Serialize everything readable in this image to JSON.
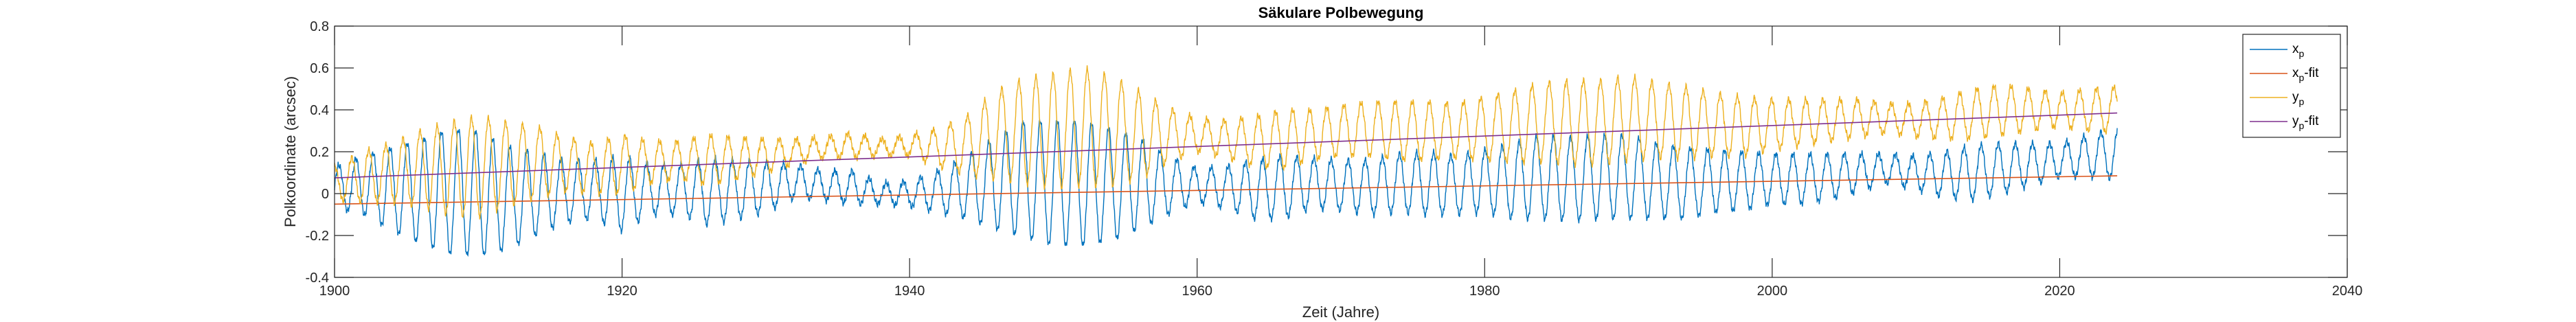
{
  "chart_data": {
    "type": "line",
    "title": "Säkulare Polbewegung",
    "xlabel": "Zeit (Jahre)",
    "ylabel": "Polkoordinate (arcsec)",
    "xlim": [
      1900,
      2040
    ],
    "ylim": [
      -0.4,
      0.8
    ],
    "xticks": [
      "1900",
      "1920",
      "1940",
      "1960",
      "1980",
      "2000",
      "2020",
      "2040"
    ],
    "yticks": [
      "-0.4",
      "-0.2",
      "0",
      "0.2",
      "0.4",
      "0.6",
      "0.8"
    ],
    "grid": false,
    "legend_position": "top-right",
    "series": [
      {
        "name": "x_p",
        "label_main": "x",
        "label_sub": "p",
        "label_suffix": "",
        "color": "#0072BD",
        "x": [
          1900,
          1902,
          1904,
          1906,
          1908,
          1910,
          1912,
          1914,
          1916,
          1918,
          1920,
          1922,
          1924,
          1926,
          1928,
          1930,
          1932,
          1934,
          1936,
          1938,
          1940,
          1942,
          1944,
          1946,
          1948,
          1950,
          1952,
          1954,
          1956,
          1958,
          1960,
          1962,
          1964,
          1966,
          1968,
          1970,
          1972,
          1974,
          1976,
          1978,
          1980,
          1982,
          1984,
          1986,
          1988,
          1990,
          1992,
          1994,
          1996,
          1998,
          2000,
          2002,
          2004,
          2006,
          2008,
          2010,
          2012,
          2014,
          2016,
          2018,
          2020,
          2022,
          2024
        ],
        "center": [
          0.03,
          0.04,
          0.02,
          0.01,
          0.01,
          0.0,
          -0.02,
          0.0,
          0.01,
          0.02,
          0.0,
          0.02,
          0.02,
          0.01,
          0.02,
          0.03,
          0.06,
          0.04,
          0.03,
          0.0,
          0.0,
          0.01,
          0.03,
          0.05,
          0.07,
          0.05,
          0.05,
          0.04,
          0.05,
          0.04,
          0.04,
          0.03,
          0.02,
          0.03,
          0.05,
          0.04,
          0.03,
          0.05,
          0.05,
          0.04,
          0.06,
          0.06,
          0.08,
          0.07,
          0.08,
          0.08,
          0.06,
          0.05,
          0.06,
          0.06,
          0.07,
          0.07,
          0.08,
          0.1,
          0.12,
          0.1,
          0.09,
          0.1,
          0.12,
          0.14,
          0.16,
          0.18,
          0.19
        ],
        "amplitude": [
          0.1,
          0.14,
          0.2,
          0.25,
          0.3,
          0.3,
          0.25,
          0.2,
          0.15,
          0.14,
          0.18,
          0.12,
          0.12,
          0.16,
          0.14,
          0.12,
          0.08,
          0.07,
          0.08,
          0.05,
          0.06,
          0.1,
          0.15,
          0.22,
          0.28,
          0.3,
          0.3,
          0.27,
          0.22,
          0.14,
          0.08,
          0.1,
          0.14,
          0.15,
          0.12,
          0.12,
          0.13,
          0.14,
          0.15,
          0.14,
          0.15,
          0.18,
          0.2,
          0.2,
          0.2,
          0.2,
          0.18,
          0.17,
          0.15,
          0.14,
          0.12,
          0.12,
          0.11,
          0.09,
          0.07,
          0.08,
          0.11,
          0.13,
          0.12,
          0.1,
          0.08,
          0.1,
          0.12
        ],
        "period": 1.19
      },
      {
        "name": "x_p-fit",
        "label_main": "x",
        "label_sub": "p",
        "label_suffix": "-fit",
        "color": "#D95319",
        "x": [
          1900,
          2024
        ],
        "y": [
          -0.05,
          0.085
        ]
      },
      {
        "name": "y_p",
        "label_main": "y",
        "label_sub": "p",
        "label_suffix": "",
        "color": "#EDB120",
        "x": [
          1900,
          1902,
          1904,
          1906,
          1908,
          1910,
          1912,
          1914,
          1916,
          1918,
          1920,
          1922,
          1924,
          1926,
          1928,
          1930,
          1932,
          1934,
          1936,
          1938,
          1940,
          1942,
          1944,
          1946,
          1948,
          1950,
          1952,
          1954,
          1956,
          1958,
          1960,
          1962,
          1964,
          1966,
          1968,
          1970,
          1972,
          1974,
          1976,
          1978,
          1980,
          1982,
          1984,
          1986,
          1988,
          1990,
          1992,
          1994,
          1996,
          1998,
          2000,
          2002,
          2004,
          2006,
          2008,
          2010,
          2012,
          2014,
          2016,
          2018,
          2020,
          2022,
          2024
        ],
        "center": [
          0.05,
          0.08,
          0.1,
          0.12,
          0.12,
          0.13,
          0.14,
          0.15,
          0.14,
          0.12,
          0.14,
          0.15,
          0.16,
          0.16,
          0.17,
          0.18,
          0.2,
          0.22,
          0.23,
          0.22,
          0.23,
          0.22,
          0.23,
          0.28,
          0.3,
          0.3,
          0.32,
          0.3,
          0.28,
          0.28,
          0.28,
          0.26,
          0.25,
          0.26,
          0.28,
          0.3,
          0.31,
          0.3,
          0.3,
          0.3,
          0.31,
          0.32,
          0.34,
          0.34,
          0.34,
          0.36,
          0.35,
          0.34,
          0.33,
          0.32,
          0.33,
          0.34,
          0.35,
          0.36,
          0.36,
          0.35,
          0.36,
          0.38,
          0.4,
          0.4,
          0.4,
          0.4,
          0.4
        ],
        "amplitude": [
          0.08,
          0.12,
          0.14,
          0.18,
          0.22,
          0.24,
          0.2,
          0.17,
          0.13,
          0.12,
          0.14,
          0.1,
          0.09,
          0.12,
          0.1,
          0.08,
          0.06,
          0.05,
          0.06,
          0.04,
          0.05,
          0.09,
          0.14,
          0.21,
          0.25,
          0.27,
          0.28,
          0.26,
          0.21,
          0.13,
          0.08,
          0.09,
          0.12,
          0.14,
          0.12,
          0.12,
          0.13,
          0.14,
          0.14,
          0.13,
          0.15,
          0.17,
          0.19,
          0.2,
          0.2,
          0.2,
          0.18,
          0.17,
          0.15,
          0.14,
          0.12,
          0.11,
          0.1,
          0.09,
          0.07,
          0.08,
          0.1,
          0.12,
          0.12,
          0.1,
          0.08,
          0.1,
          0.11
        ],
        "period": 1.19
      },
      {
        "name": "y_p-fit",
        "label_main": "y",
        "label_sub": "p",
        "label_suffix": "-fit",
        "color": "#7E2F8E",
        "x": [
          1900,
          2024
        ],
        "y": [
          0.075,
          0.385
        ]
      }
    ]
  }
}
